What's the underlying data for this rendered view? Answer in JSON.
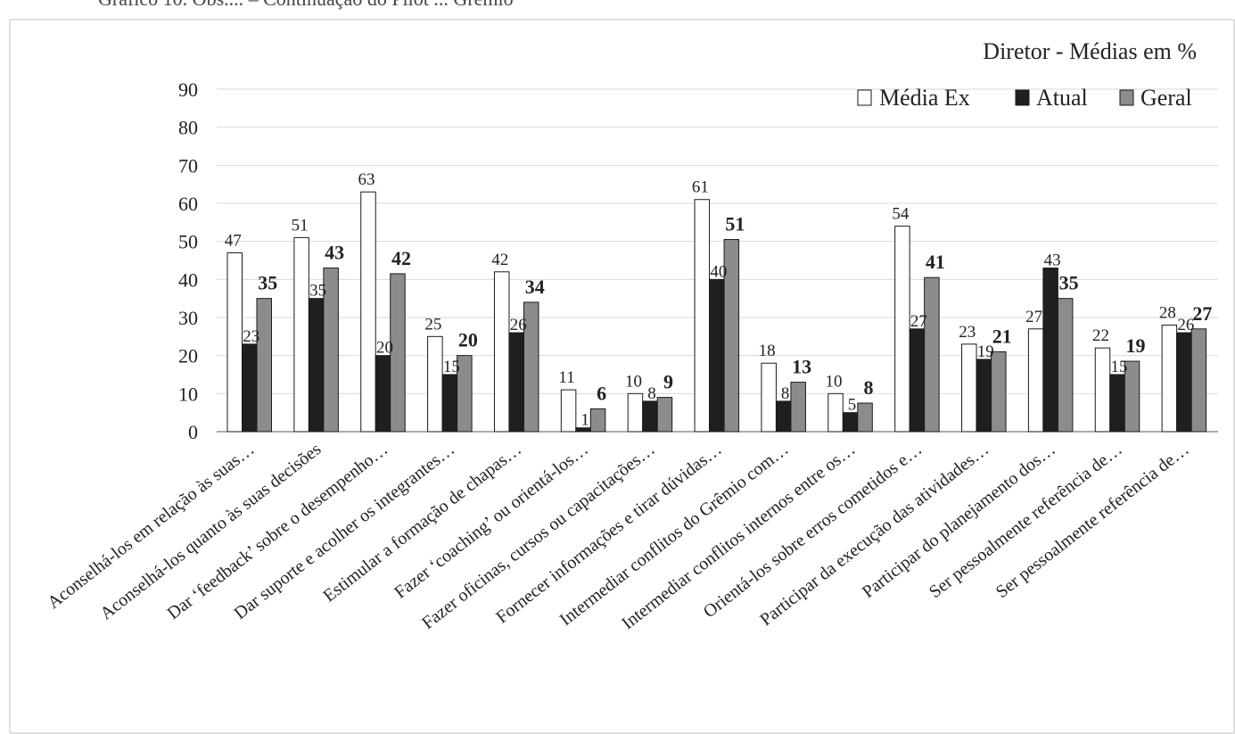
{
  "header_text": "Gráfico 10. Obs.... – Continuação do Pilot ... Grêmio",
  "chart_data": {
    "type": "bar",
    "title": "Diretor  - Médias em %",
    "xlabel": "",
    "ylabel": "",
    "ylim": [
      0,
      90
    ],
    "yticks": [
      0,
      10,
      20,
      30,
      40,
      50,
      60,
      70,
      80,
      90
    ],
    "grid": true,
    "legend_position": "top-right",
    "categories": [
      "Aconselhá-los em relação às suas…",
      "Aconselhá-los quanto às suas decisões",
      "Dar ‘feedback’ sobre o desempenho…",
      "Dar suporte e acolher os integrantes…",
      "Estimular a formação de chapas…",
      "Fazer ‘coaching’ ou orientá-los…",
      "Fazer oficinas, cursos ou capacitações…",
      "Fornecer informações e tirar dúvidas…",
      "Intermediar conflitos do Grêmio com…",
      "Intermediar conflitos internos entre os…",
      "Orientá-los sobre erros cometidos e…",
      "Participar da execução das atividades…",
      "Participar do planejamento dos…",
      "Ser pessoalmente referência de…",
      "Ser pessoalmente referência de…"
    ],
    "series": [
      {
        "name": "Média Ex",
        "color": "#ffffff",
        "label_style": "normal",
        "values": [
          47,
          51,
          63,
          25,
          42,
          11,
          10,
          61,
          18,
          10,
          54,
          23,
          27,
          22,
          28
        ]
      },
      {
        "name": "Atual",
        "color": "#1f1f1f",
        "label_style": "normal",
        "values": [
          23,
          35,
          20,
          15,
          26,
          1,
          8,
          40,
          8,
          5,
          27,
          19,
          43,
          15,
          26
        ]
      },
      {
        "name": "Geral",
        "color": "#8c8c8c",
        "label_style": "bold",
        "values": [
          35,
          43,
          41.5,
          20,
          34,
          6,
          9,
          50.5,
          13,
          7.5,
          40.5,
          21,
          35,
          18.5,
          27
        ],
        "labels": [
          "35",
          "43",
          "42",
          "20",
          "34",
          "6",
          "9",
          "51",
          "13",
          "8",
          "41",
          "21",
          "35",
          "19",
          "27"
        ]
      }
    ]
  }
}
